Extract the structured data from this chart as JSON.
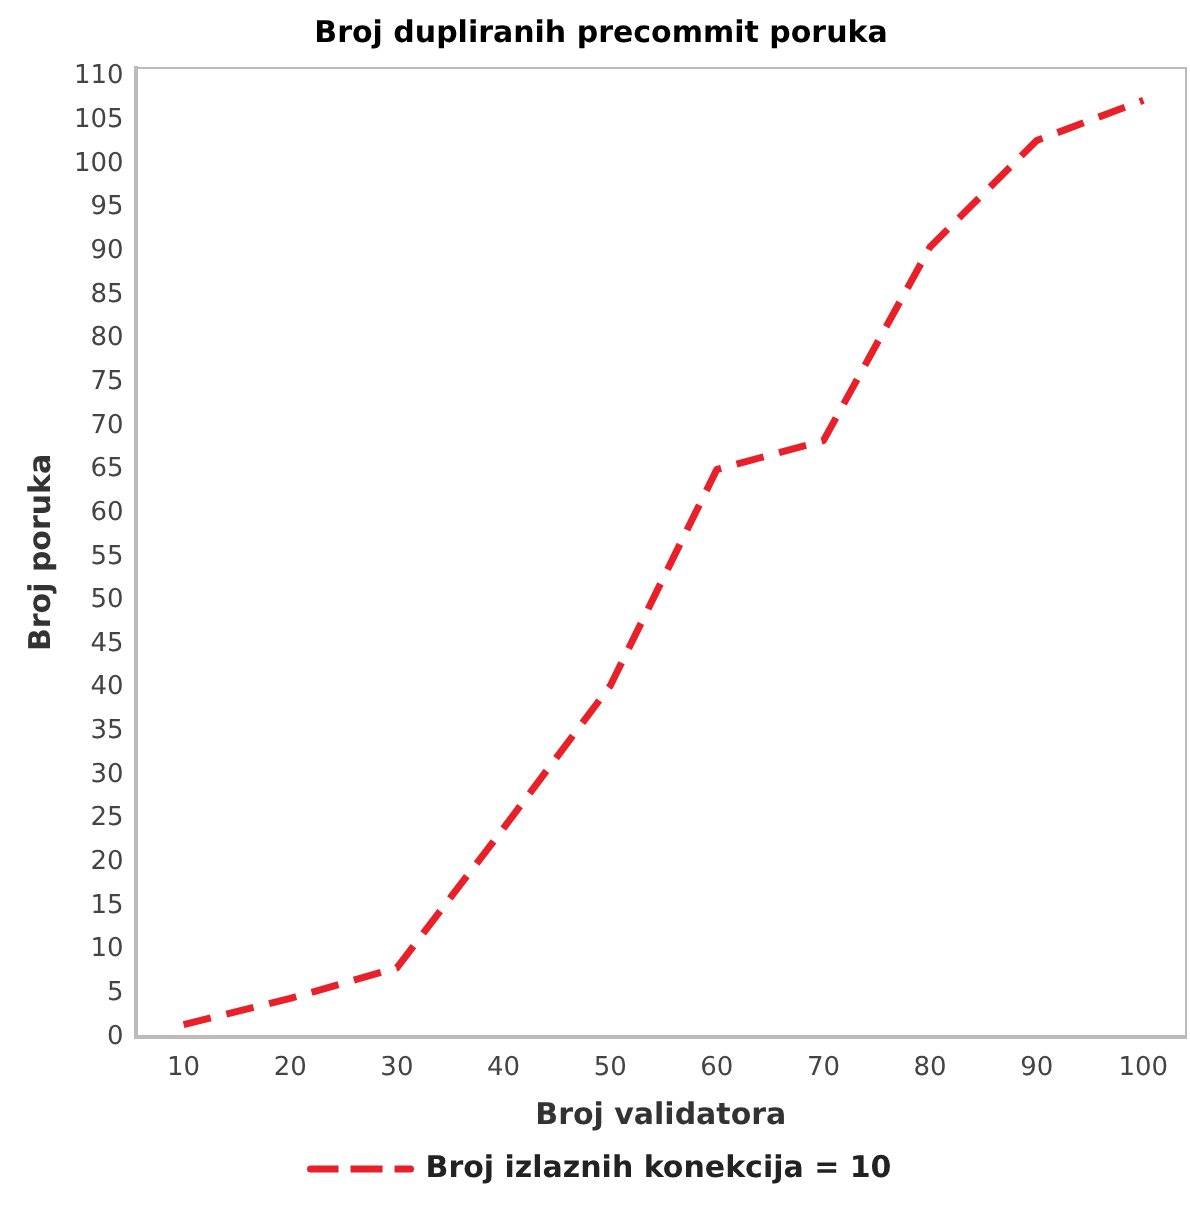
{
  "chart_data": {
    "type": "line",
    "title": "Broj dupliranih precommit poruka",
    "xlabel": "Broj validatora",
    "ylabel": "Broj poruka",
    "x": [
      10,
      20,
      30,
      40,
      50,
      60,
      70,
      80,
      90,
      100
    ],
    "series": [
      {
        "name": "Broj izlaznih konekcija = 10",
        "color": "#e8202a",
        "values": [
          1.4,
          4.4,
          7.9,
          23.9,
          40.2,
          65,
          68.3,
          90.5,
          102.7,
          107.3
        ]
      }
    ],
    "xlim": [
      5.5,
      104
    ],
    "xticks": [
      10,
      20,
      30,
      40,
      50,
      60,
      70,
      80,
      90,
      100
    ],
    "ylim": [
      0,
      111
    ],
    "yticks": [
      0,
      5,
      10,
      15,
      20,
      25,
      30,
      35,
      40,
      45,
      50,
      55,
      60,
      65,
      70,
      75,
      80,
      85,
      90,
      95,
      100,
      105,
      110
    ],
    "grid": false,
    "legend": "bottom",
    "marker": "none",
    "line_style": "dashed"
  }
}
